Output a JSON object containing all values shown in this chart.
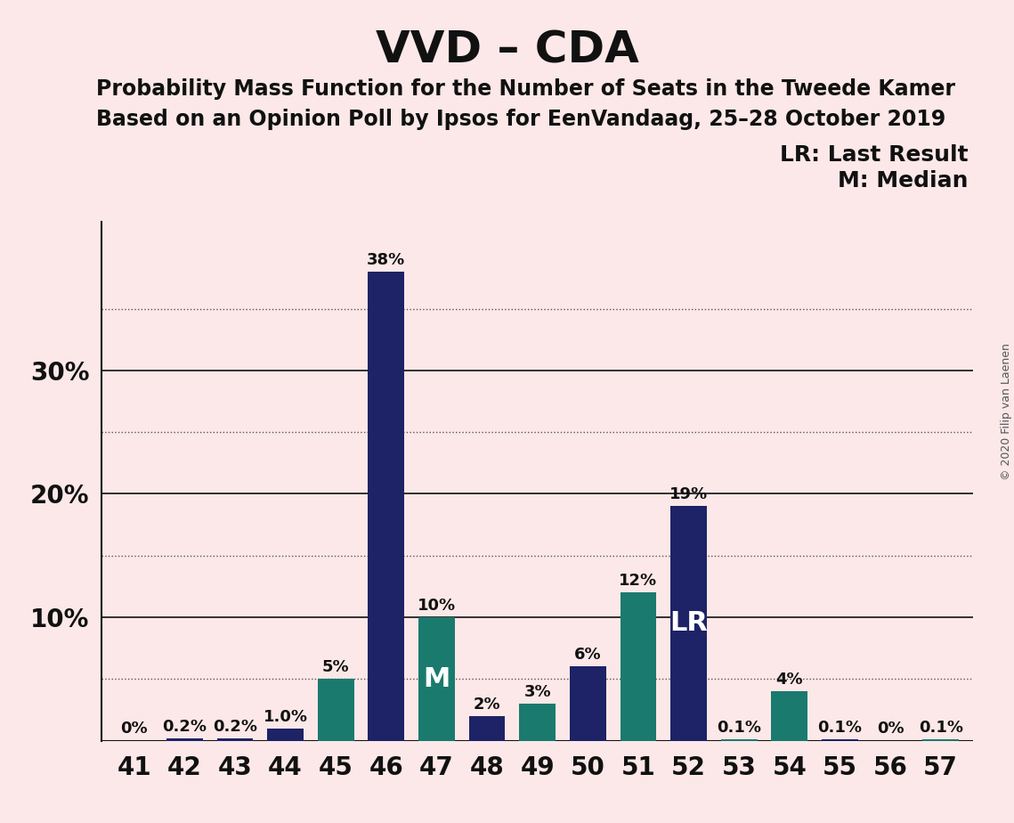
{
  "title": "VVD – CDA",
  "subtitle1": "Probability Mass Function for the Number of Seats in the Tweede Kamer",
  "subtitle2": "Based on an Opinion Poll by Ipsos for EenVandaag, 25–28 October 2019",
  "copyright": "© 2020 Filip van Laenen",
  "legend_lr": "LR: Last Result",
  "legend_m": "M: Median",
  "background_color": "#fce8e8",
  "bar_color_navy": "#1e2266",
  "bar_color_teal": "#1a7a6e",
  "seats": [
    41,
    42,
    43,
    44,
    45,
    46,
    47,
    48,
    49,
    50,
    51,
    52,
    53,
    54,
    55,
    56,
    57
  ],
  "values_map": {
    "41": 0.0,
    "42": 0.2,
    "43": 0.2,
    "44": 1.0,
    "45": 5.0,
    "46": 38.0,
    "47": 10.0,
    "48": 2.0,
    "49": 3.0,
    "50": 6.0,
    "51": 12.0,
    "52": 19.0,
    "53": 0.1,
    "54": 4.0,
    "55": 0.1,
    "56": 0.0,
    "57": 0.1
  },
  "labels_map": {
    "41": "0%",
    "42": "0.2%",
    "43": "0.2%",
    "44": "1.0%",
    "45": "5%",
    "46": "38%",
    "47": "10%",
    "48": "2%",
    "49": "3%",
    "50": "6%",
    "51": "12%",
    "52": "19%",
    "53": "0.1%",
    "54": "4%",
    "55": "0.1%",
    "56": "0%",
    "57": "0.1%"
  },
  "color_map": {
    "41": "navy",
    "42": "navy",
    "43": "navy",
    "44": "navy",
    "45": "teal",
    "46": "navy",
    "47": "teal",
    "48": "navy",
    "49": "teal",
    "50": "navy",
    "51": "teal",
    "52": "navy",
    "53": "teal",
    "54": "teal",
    "55": "navy",
    "56": "navy",
    "57": "teal"
  },
  "median_seat": 47,
  "lr_seat": 52,
  "bar_width": 0.72,
  "ylim": [
    0,
    42
  ],
  "solid_yticks": [
    10,
    20,
    30
  ],
  "dotted_yticks": [
    5,
    15,
    25,
    35
  ],
  "label_fontsize": 13,
  "tick_fontsize": 20,
  "title_fontsize": 36,
  "subtitle_fontsize": 17,
  "legend_fontsize": 18,
  "inner_label_fontsize": 22
}
